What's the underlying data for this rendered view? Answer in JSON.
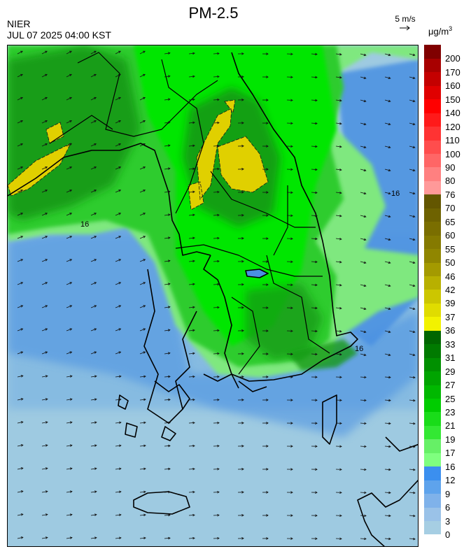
{
  "header": {
    "title": "PM-2.5",
    "agency": "NIER",
    "timestamp": "JUL 07 2025 04:00 KST",
    "wind_reference": "5 m/s",
    "unit_base": "μg/m",
    "unit_exp": "3"
  },
  "map": {
    "contour_labels": [
      "16",
      "16",
      "16"
    ],
    "colors": {
      "sea_light": "#9ecae1",
      "sea_mid": "#6baed6",
      "sea_blue": "#4a90e2",
      "green_pale": "#7fe87f",
      "green": "#2ecc2e",
      "green_bright": "#00e600",
      "green_dark": "#129912",
      "yellow": "#e0d000",
      "border": "#000000"
    }
  },
  "colorbar": {
    "bins": [
      {
        "label": "0",
        "color": "#a6cee3"
      },
      {
        "label": "3",
        "color": "#9ac2e8"
      },
      {
        "label": "6",
        "color": "#7fb2ea"
      },
      {
        "label": "9",
        "color": "#5ea3ec"
      },
      {
        "label": "12",
        "color": "#3b8fef"
      },
      {
        "label": "16",
        "color": "#7fff7f"
      },
      {
        "label": "17",
        "color": "#66f066"
      },
      {
        "label": "19",
        "color": "#33e833"
      },
      {
        "label": "21",
        "color": "#19dc19"
      },
      {
        "label": "23",
        "color": "#00cc00"
      },
      {
        "label": "25",
        "color": "#00b800"
      },
      {
        "label": "27",
        "color": "#00a400"
      },
      {
        "label": "29",
        "color": "#009000"
      },
      {
        "label": "31",
        "color": "#007a00"
      },
      {
        "label": "33",
        "color": "#006600"
      },
      {
        "label": "36",
        "color": "#f2f200"
      },
      {
        "label": "37",
        "color": "#e0dc00"
      },
      {
        "label": "39",
        "color": "#ccc600"
      },
      {
        "label": "42",
        "color": "#b8b000"
      },
      {
        "label": "46",
        "color": "#a49a00"
      },
      {
        "label": "50",
        "color": "#908600"
      },
      {
        "label": "55",
        "color": "#857a00"
      },
      {
        "label": "60",
        "color": "#7a6e00"
      },
      {
        "label": "65",
        "color": "#6e6200"
      },
      {
        "label": "70",
        "color": "#635600"
      },
      {
        "label": "76",
        "color": "#ff9999"
      },
      {
        "label": "80",
        "color": "#ff8080"
      },
      {
        "label": "90",
        "color": "#ff6666"
      },
      {
        "label": "100",
        "color": "#ff4d4d"
      },
      {
        "label": "110",
        "color": "#ff3333"
      },
      {
        "label": "120",
        "color": "#ff1a1a"
      },
      {
        "label": "140",
        "color": "#ff0000"
      },
      {
        "label": "150",
        "color": "#e00000"
      },
      {
        "label": "160",
        "color": "#c40000"
      },
      {
        "label": "170",
        "color": "#a80000"
      },
      {
        "label": "200",
        "color": "#800000"
      }
    ]
  }
}
